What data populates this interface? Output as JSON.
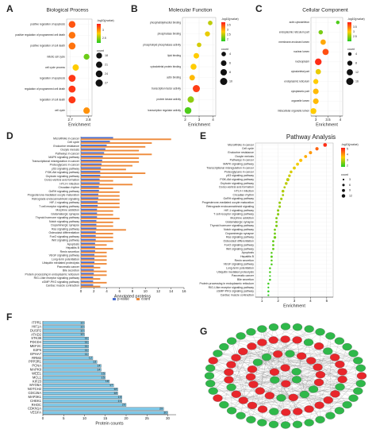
{
  "chart_data": [
    {
      "type": "dot",
      "label": "A",
      "title": "Biological Process",
      "categories": [
        "positive regulation of apoptosis",
        "positive regulation of programmed cell death",
        "positive regulation of cell death",
        "mitotic cell cycle",
        "cell cycle process",
        "regulation of apoptosis",
        "regulation of programmed cell death",
        "regulation of cell death",
        "cell cycle"
      ],
      "values": [
        2.71,
        2.71,
        2.71,
        2.79,
        2.73,
        2.71,
        2.71,
        2.71,
        2.79
      ],
      "sizes": [
        24,
        24,
        25,
        18,
        21,
        26,
        26,
        26,
        22
      ],
      "pvalues": [
        3.2,
        3.1,
        3.1,
        2.4,
        2.8,
        3.3,
        3.3,
        3.3,
        3.0
      ],
      "xlim": [
        2.68,
        2.82
      ],
      "xticks": [
        2.7,
        2.8
      ],
      "x_label": "Enrichment",
      "color_scale": {
        "title": "-log10(pvalue)",
        "lim": [
          2.2,
          3.4
        ],
        "ticks": [
          2.5,
          3
        ],
        "colors": [
          "#22cc22",
          "#ffcc00",
          "#ff1a1a"
        ]
      },
      "size_legend": {
        "title": "count",
        "values": [
          18,
          21,
          24,
          27
        ]
      }
    },
    {
      "type": "dot",
      "label": "B",
      "title": "Molecular Function",
      "categories": [
        "phosphatidylinositol binding",
        "phosphatase binding",
        "phospholipid phosphatase activity",
        "lipid binding",
        "cytoskeletal protein binding",
        "actin binding",
        "transcription factor activity",
        "protein kinase activity",
        "transcription regulator activity"
      ],
      "values": [
        3.8,
        3.6,
        3.0,
        2.8,
        2.6,
        2.5,
        2.8,
        2.4,
        2.2
      ],
      "sizes": [
        4,
        5,
        4,
        6,
        7,
        6,
        10,
        8,
        9
      ],
      "pvalues": [
        2.5,
        2.7,
        2.6,
        2.8,
        2.8,
        2.9,
        3.6,
        2.3,
        2.0
      ],
      "xlim": [
        1.8,
        4.2
      ],
      "xticks": [
        2,
        3,
        4
      ],
      "x_label": "Enrichment",
      "color_scale": {
        "title": "-log10(pvalue)",
        "lim": [
          1.8,
          3.8
        ],
        "ticks": [
          2,
          2.5,
          3,
          3.5
        ],
        "colors": [
          "#22cc22",
          "#ffcc00",
          "#ff1a1a"
        ]
      },
      "size_legend": {
        "title": "count",
        "values": [
          4,
          6,
          8,
          10
        ]
      }
    },
    {
      "type": "dot",
      "label": "C",
      "title": "Cellular Component",
      "categories": [
        "actin cytoskeleton",
        "endoplasmic reticulum part",
        "membrane-enclosed lumen",
        "nuclear lumen",
        "nucleoplasm",
        "cytoskeletal part",
        "endoplasmic reticulum",
        "cytoplasmic part",
        "organelle lumen",
        "intracellular organelle lumen"
      ],
      "values": [
        3.9,
        3.2,
        3.3,
        3.4,
        3.1,
        3.1,
        3.0,
        3.0,
        3.0,
        2.9
      ],
      "sizes": [
        4,
        6,
        9,
        12,
        14,
        9,
        8,
        10,
        10,
        11
      ],
      "pvalues": [
        2.2,
        2.4,
        3.2,
        3.7,
        3.9,
        2.9,
        3.0,
        3.1,
        3.1,
        3.0
      ],
      "xlim": [
        2.8,
        4.1
      ],
      "xticks": [
        3,
        3.5,
        4
      ],
      "x_label": "Enrichment",
      "color_scale": {
        "title": "-log10(pvalue)",
        "lim": [
          2,
          4
        ],
        "ticks": [
          2.5,
          3,
          3.5
        ],
        "colors": [
          "#22cc22",
          "#ffcc00",
          "#ff1a1a"
        ]
      },
      "size_legend": {
        "title": "count",
        "values": [
          4,
          8,
          12,
          16
        ]
      }
    },
    {
      "type": "bar",
      "label": "D",
      "categories": [
        "MicroRNAs in cancer",
        "Cell cycle",
        "Endocrine resistance",
        "Oocyte meiosis",
        "Pathways in cancer",
        "MAPK signaling pathway",
        "Transcriptional misregulation in cancer",
        "Proteoglycans in cancer",
        "p53 signaling pathway",
        "PI3K-Akt signaling pathway",
        "Oxytocin signaling pathway",
        "Dorso-ventral axis formation",
        "HTLV-I infection",
        "Circadian rhythm",
        "GnRH signaling pathway",
        "Progesterone-mediated oocyte maturation",
        "Retrograde endocannabinoid signaling",
        "HIF-1 signaling pathway",
        "T cell receptor signaling pathway",
        "Morphine addiction",
        "Glutamatergic synapse",
        "Thyroid hormone signaling pathway",
        "Notch signaling pathway",
        "Dopaminergic synapse",
        "Ras signaling pathway",
        "Osteoclast differentiation",
        "FoxO signaling pathway",
        "Wnt signaling pathway",
        "Apoptosis",
        "Hepatitis B",
        "Renin secretion",
        "VEGF signaling pathway",
        "Long-term potentiation",
        "Ubiquitin mediated proteolysis",
        "Pancreatic cancer",
        "Bile secretion",
        "Protein processing in endoplasmic reticulum",
        "RIG-I-like receptor signaling pathway",
        "cGMP-PKG signaling pathway",
        "Cardiac muscle contraction"
      ],
      "series": [
        {
          "name": "p-value",
          "color": "#4a6fd0",
          "values": [
            5,
            4.5,
            4,
            3.8,
            3.6,
            3.4,
            3.3,
            3.2,
            3.1,
            3,
            3,
            2.9,
            2.9,
            2.8,
            2.8,
            2.7,
            2.7,
            2.6,
            2.6,
            2.5,
            2.5,
            2.5,
            2.4,
            2.4,
            2.4,
            2.3,
            2.3,
            2.3,
            2.2,
            2.2,
            2.2,
            2.1,
            2.1,
            2.1,
            2,
            2,
            2,
            1.9,
            1.9,
            1.9
          ]
        },
        {
          "name": "count",
          "color": "#ee8a3a",
          "values": [
            14,
            11,
            10,
            9,
            11,
            9,
            9,
            8,
            7,
            10,
            8,
            5,
            8,
            5,
            6,
            6,
            6,
            6,
            6,
            5,
            5,
            6,
            5,
            5,
            7,
            5,
            5,
            5,
            4,
            5,
            4,
            4,
            4,
            4,
            3,
            4,
            4,
            3,
            4,
            3
          ]
        }
      ],
      "xlim": [
        0,
        16
      ],
      "xticks": [
        0,
        2,
        4,
        6,
        8,
        10,
        12,
        14,
        16
      ],
      "x_label": "Annotated proteins"
    },
    {
      "type": "dot",
      "label": "E",
      "title": "Pathway Analysis",
      "categories": [
        "MicroRNAs in cancer",
        "Cell cycle",
        "Endocrine resistance",
        "Oocyte meiosis",
        "Pathways in cancer",
        "MAPK signaling pathway",
        "Transcriptional misregulation in cancer",
        "Proteoglycans in cancer",
        "p53 signaling pathway",
        "PI3K-Akt signaling pathway",
        "Oxytocin signaling pathway",
        "Dorso-ventral axis formation",
        "HTLV-I infection",
        "Circadian rhythm",
        "GnRH signaling pathway",
        "Progesterone-mediated oocyte maturation",
        "Retrograde endocannabinoid signaling",
        "HIF-1 signaling pathway",
        "T cell receptor signaling pathway",
        "Morphine addiction",
        "Glutamatergic synapse",
        "Thyroid hormone signaling pathway",
        "Notch signaling pathway",
        "Dopaminergic synapse",
        "Ras signaling pathway",
        "Osteoclast differentiation",
        "FoxO signaling pathway",
        "Wnt signaling pathway",
        "Apoptosis",
        "Hepatitis B",
        "Renin secretion",
        "VEGF signaling pathway",
        "Long-term potentiation",
        "Ubiquitin mediated proteolysis",
        "Pancreatic cancer",
        "Bile secretion",
        "Protein processing in endoplasmic reticulum",
        "RIG-I-like receptor signaling pathway",
        "cGMP-PKG signaling pathway",
        "Cardiac muscle contraction"
      ],
      "values": [
        4.9,
        4.4,
        4.0,
        3.7,
        3.4,
        3.2,
        3.0,
        2.8,
        2.7,
        2.6,
        2.5,
        2.4,
        2.3,
        2.3,
        2.2,
        2.1,
        2.1,
        2.0,
        2.0,
        1.9,
        1.9,
        1.9,
        1.8,
        1.8,
        1.8,
        1.7,
        1.7,
        1.7,
        1.6,
        1.6,
        1.6,
        1.6,
        1.5,
        1.5,
        1.5,
        1.5,
        1.4,
        1.4,
        1.4,
        1.4
      ],
      "sizes": [
        14,
        11,
        10,
        9,
        11,
        9,
        9,
        8,
        7,
        10,
        8,
        5,
        8,
        5,
        6,
        6,
        6,
        6,
        6,
        5,
        5,
        6,
        5,
        5,
        7,
        5,
        5,
        5,
        4,
        5,
        4,
        4,
        4,
        4,
        3,
        4,
        4,
        3,
        4,
        3
      ],
      "pvalues": [
        5,
        4.5,
        4,
        3.8,
        3.6,
        3.4,
        3.3,
        3.2,
        3.1,
        3,
        3,
        2.9,
        2.9,
        2.8,
        2.8,
        2.7,
        2.7,
        2.6,
        2.6,
        2.5,
        2.5,
        2.5,
        2.4,
        2.4,
        2.4,
        2.3,
        2.3,
        2.3,
        2.2,
        2.2,
        2.2,
        2.1,
        2.1,
        2.1,
        2,
        2,
        2,
        1.9,
        1.9,
        1.9
      ],
      "xlim": [
        0.6,
        5.4
      ],
      "xticks": [
        1,
        2,
        3,
        4,
        5
      ],
      "x_label": "Enrichment",
      "color_scale": {
        "title": "-log10(pvalue)",
        "lim": [
          1.8,
          5.2
        ],
        "ticks": [
          2,
          3,
          4,
          5
        ],
        "colors": [
          "#22cc22",
          "#ffcc00",
          "#ff1a1a"
        ]
      },
      "size_legend": {
        "title": "count",
        "values": [
          3,
          6,
          9,
          12
        ]
      }
    },
    {
      "type": "bar",
      "label": "F",
      "categories": [
        "ITPR1",
        "HIF1A",
        "DUSP2",
        "ATAD2",
        "STK38",
        "PDCD4",
        "MEF2C",
        "E2F5",
        "EPHA7",
        "RRM2",
        "PPP3R1",
        "PCNA",
        "MAPK9",
        "WEE1",
        "MCL1",
        "KIF23",
        "MYO5A",
        "NOTCH2",
        "CDC25A",
        "MAP3K1",
        "CHEK1",
        "RHOC",
        "CDKN1A",
        "VEGFA"
      ],
      "values": [
        10,
        10,
        10,
        10,
        11,
        11,
        11,
        11,
        11,
        12,
        13,
        14,
        14,
        15,
        15,
        16,
        17,
        18,
        18,
        19,
        19,
        20,
        29,
        30
      ],
      "color": "#7ec8e8",
      "xlim": [
        0,
        32
      ],
      "xticks": [
        0,
        5,
        10,
        15,
        20,
        25,
        30
      ],
      "x_label": "Protein counts"
    }
  ],
  "network": {
    "label": "G"
  }
}
